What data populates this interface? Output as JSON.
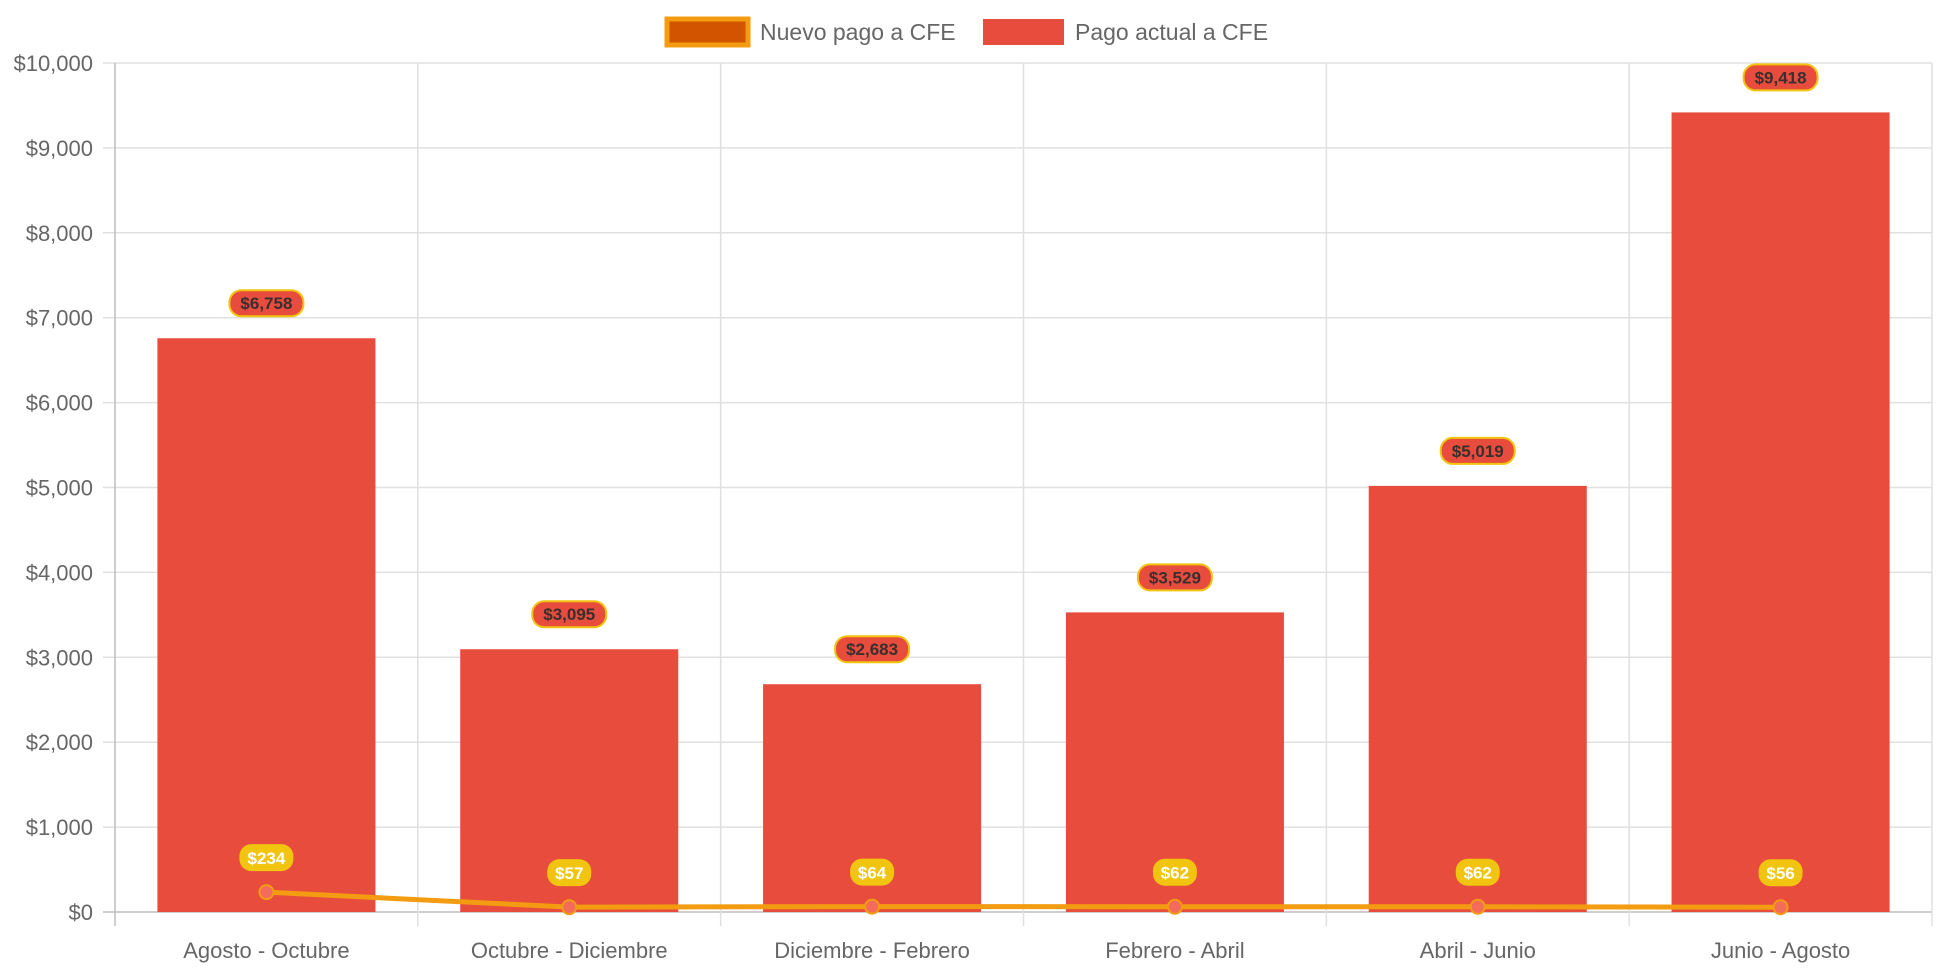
{
  "chart_data": {
    "type": "bar",
    "categories": [
      "Agosto - Octubre",
      "Octubre - Diciembre",
      "Diciembre - Febrero",
      "Febrero - Abril",
      "Abril - Junio",
      "Junio - Agosto"
    ],
    "series": [
      {
        "name": "Nuevo pago a CFE",
        "type": "line",
        "values": [
          234,
          57,
          64,
          62,
          62,
          56
        ],
        "labels": [
          "$234",
          "$57",
          "$64",
          "$62",
          "$62",
          "$56"
        ],
        "color": "#f39c12",
        "fill_color": "#d35400",
        "label_color": "#f1c40f"
      },
      {
        "name": "Pago actual a CFE",
        "type": "bar",
        "values": [
          6758,
          3095,
          2683,
          3529,
          5019,
          9418
        ],
        "labels": [
          "$6,758",
          "$3,095",
          "$2,683",
          "$3,529",
          "$5,019",
          "$9,418"
        ],
        "color": "#e74c3c"
      }
    ],
    "y_ticks": [
      "$0",
      "$1,000",
      "$2,000",
      "$3,000",
      "$4,000",
      "$5,000",
      "$6,000",
      "$7,000",
      "$8,000",
      "$9,000",
      "$10,000"
    ],
    "ylim": [
      0,
      10000
    ],
    "grid": true,
    "legend": "top"
  }
}
